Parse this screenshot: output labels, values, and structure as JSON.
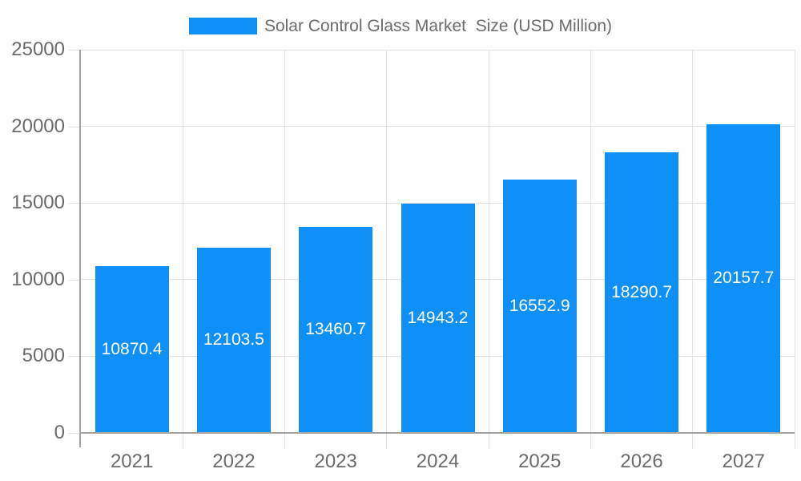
{
  "chart_data": {
    "type": "bar",
    "title": "Solar Control Glass Market  Size (USD Million)",
    "legend": {
      "label": "Solar Control Glass Market  Size (USD Million)",
      "position": "top-center"
    },
    "categories": [
      "2021",
      "2022",
      "2023",
      "2024",
      "2025",
      "2026",
      "2027"
    ],
    "series": [
      {
        "name": "Solar Control Glass Market  Size (USD Million)",
        "values": [
          10870.4,
          12103.5,
          13460.7,
          14943.2,
          16552.9,
          18290.7,
          20157.7
        ]
      }
    ],
    "bar_value_labels": [
      "10870.4",
      "12103.5",
      "13460.7",
      "14943.2",
      "16552.9",
      "18290.7",
      "20157.7"
    ],
    "xlabel": "",
    "ylabel": "",
    "ylim": [
      0,
      25000
    ],
    "yticks": [
      0,
      5000,
      10000,
      15000,
      20000,
      25000
    ],
    "ytick_labels": [
      "0",
      "5000",
      "10000",
      "15000",
      "20000",
      "25000"
    ],
    "grid": {
      "horizontal": true,
      "vertical": true
    },
    "bar_labels_placement": "centered-inside-bar",
    "colors": {
      "bar": "#0e90f8",
      "bar_label_text": "#ffffff",
      "axis_text": "#6b6b6b",
      "legend_text": "#6b6b6b",
      "axis_line": "#a3a3a3",
      "gridline": "#e2e2e2",
      "background": "#ffffff"
    }
  }
}
